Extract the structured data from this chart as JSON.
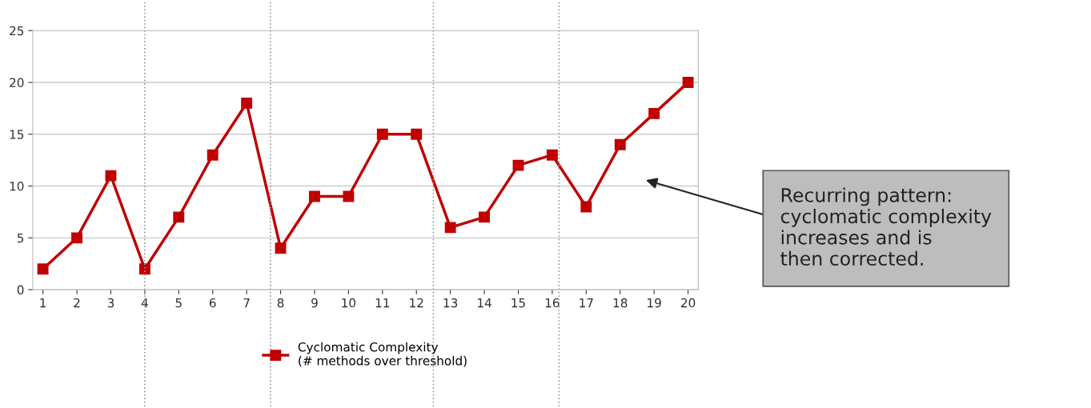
{
  "chart_data": {
    "type": "line",
    "x": [
      1,
      2,
      3,
      4,
      5,
      6,
      7,
      8,
      9,
      10,
      11,
      12,
      13,
      14,
      15,
      16,
      17,
      18,
      19,
      20
    ],
    "series": [
      {
        "name": "Cyclomatic Complexity\n(# methods over threshold)",
        "color": "#c00000",
        "values": [
          2,
          5,
          11,
          2,
          7,
          13,
          18,
          4,
          9,
          9,
          15,
          15,
          6,
          7,
          12,
          13,
          8,
          14,
          17,
          20
        ]
      }
    ],
    "xlim": [
      0.7,
      20.3
    ],
    "xticks": [
      1,
      2,
      3,
      4,
      5,
      6,
      7,
      8,
      9,
      10,
      11,
      12,
      13,
      14,
      15,
      16,
      17,
      18,
      19,
      20
    ],
    "ylim": [
      0,
      25
    ],
    "yticks": [
      0,
      5,
      10,
      15,
      20,
      25
    ],
    "grid": "y",
    "legend": "bottom",
    "marker": "square",
    "line_style": "solid",
    "ref_lines": [
      {
        "axis": "x",
        "value": 4,
        "color": "#999999",
        "line_style": "dotted"
      },
      {
        "axis": "x",
        "value": 7.7,
        "color": "#999999",
        "line_style": "dotted"
      },
      {
        "axis": "x",
        "value": 12.5,
        "color": "#999999",
        "line_style": "dotted"
      },
      {
        "axis": "x",
        "value": 16.2,
        "color": "#999999",
        "line_style": "dotted"
      }
    ],
    "annotations": [
      "Recurring pattern:\ncyclomatic complexity\nincreases and is\nthen corrected."
    ]
  }
}
